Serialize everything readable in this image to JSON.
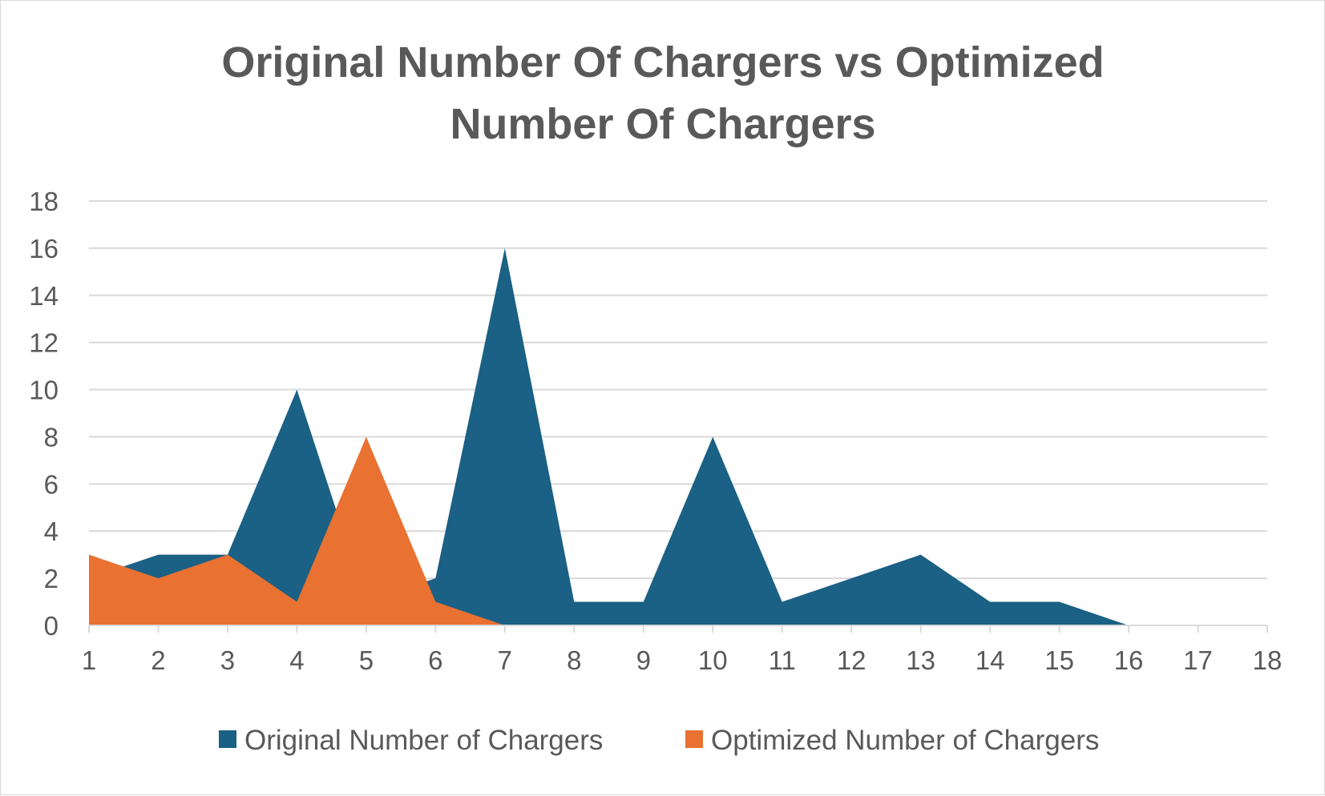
{
  "chart_data": {
    "type": "area",
    "title": "Original Number Of Chargers vs Optimized Number Of Chargers",
    "title_lines": [
      "Original Number Of Chargers vs Optimized",
      "Number Of Chargers"
    ],
    "categories": [
      "1",
      "2",
      "3",
      "4",
      "5",
      "6",
      "7",
      "8",
      "9",
      "10",
      "11",
      "12",
      "13",
      "14",
      "15",
      "16",
      "17",
      "18"
    ],
    "series": [
      {
        "name": "Original Number of Chargers",
        "color": "#1b6085",
        "values": [
          2,
          3,
          3,
          10,
          1,
          2,
          16,
          1,
          1,
          8,
          1,
          2,
          3,
          1,
          1,
          0,
          0,
          0
        ]
      },
      {
        "name": "Optimized Number of Chargers",
        "color": "#e97132",
        "values": [
          3,
          2,
          3,
          1,
          8,
          1,
          0,
          0,
          0,
          0,
          0,
          0,
          0,
          0,
          0,
          0,
          0,
          0
        ]
      }
    ],
    "ylim": [
      0,
      18
    ],
    "yticks": [
      0,
      2,
      4,
      6,
      8,
      10,
      12,
      14,
      16,
      18
    ],
    "xlabel": "",
    "ylabel": "",
    "grid": true,
    "legend_position": "bottom"
  }
}
